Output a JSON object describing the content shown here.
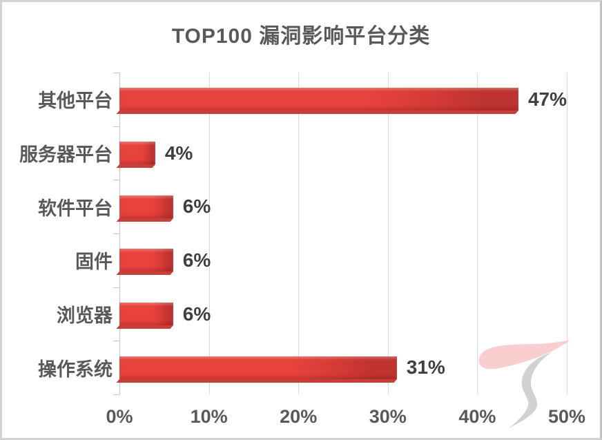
{
  "chart_data": {
    "type": "bar",
    "orientation": "horizontal",
    "title": "TOP100 漏洞影响平台分类",
    "categories": [
      "其他平台",
      "服务器平台",
      "软件平台",
      "固件",
      "浏览器",
      "操作系统"
    ],
    "values": [
      47,
      4,
      6,
      6,
      6,
      31
    ],
    "value_labels": [
      "47%",
      "4%",
      "6%",
      "6%",
      "6%",
      "31%"
    ],
    "xlabel": "",
    "ylabel": "",
    "xlim": [
      0,
      50
    ],
    "x_ticks": [
      "0%",
      "10%",
      "20%",
      "30%",
      "40%",
      "50%"
    ],
    "grid": "vertical-only",
    "legend": "none"
  },
  "colors": {
    "bar_main": "#e8423d",
    "bar_mid": "#d23a35",
    "bar_dark": "#bf3330",
    "bar_bottom_face": "#c23530",
    "grid": "#dadada",
    "axis": "#c6c6c6",
    "title_text": "#595959",
    "category_text": "#595959",
    "value_text": "#3f3f3f",
    "tick_text": "#595959",
    "frame_border": "#d3d3d3",
    "watermark_pink": "#f9c5c5",
    "watermark_gray": "#cccccc"
  }
}
